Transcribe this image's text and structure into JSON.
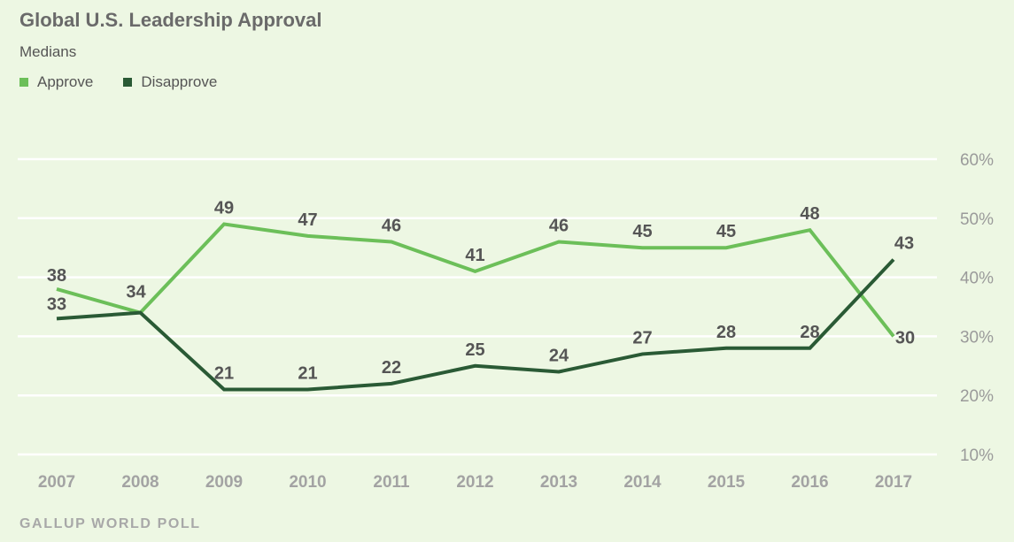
{
  "title": "Global U.S. Leadership Approval",
  "subtitle": "Medians",
  "source": "GALLUP WORLD POLL",
  "legend": [
    {
      "label": "Approve",
      "color": "#6cbf59"
    },
    {
      "label": "Disapprove",
      "color": "#2a5a35"
    }
  ],
  "chart_data": {
    "type": "line",
    "title": "Global U.S. Leadership Approval",
    "subtitle": "Medians",
    "x": [
      "2007",
      "2008",
      "2009",
      "2010",
      "2011",
      "2012",
      "2013",
      "2014",
      "2015",
      "2016",
      "2017"
    ],
    "series": [
      {
        "name": "Approve",
        "color": "#6cbf59",
        "values": [
          38,
          34,
          49,
          47,
          46,
          41,
          46,
          45,
          45,
          48,
          30
        ]
      },
      {
        "name": "Disapprove",
        "color": "#2a5a35",
        "values": [
          33,
          34,
          21,
          21,
          22,
          25,
          24,
          27,
          28,
          28,
          43
        ]
      }
    ],
    "ylim": [
      10,
      60
    ],
    "yticks": [
      "10%",
      "20%",
      "30%",
      "40%",
      "50%",
      "60%"
    ],
    "ytick_values": [
      10,
      20,
      30,
      40,
      50,
      60
    ],
    "y_axis_position": "right",
    "grid": true,
    "legend_position": "top-left"
  }
}
